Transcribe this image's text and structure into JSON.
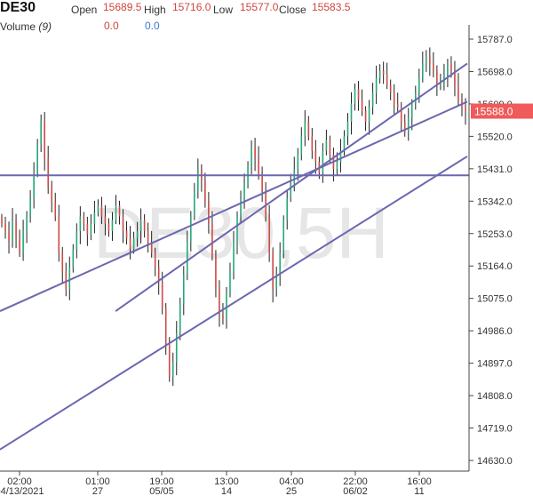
{
  "header": {
    "symbol": "DE30",
    "open_label": "Open",
    "open_value": "15689.5",
    "high_label": "High",
    "high_value": "15716.0",
    "low_label": "Low",
    "low_value": "15577.0",
    "close_label": "Close",
    "close_value": "15583.5",
    "volume_label": "Volume",
    "volume_param": "(9)",
    "volume_value_1": "0.0",
    "volume_value_2": "0.0"
  },
  "watermark": "DE30,5H",
  "colors": {
    "up": "#26a87a",
    "down": "#d04a44",
    "wick": "#222222",
    "trendline": "#6b68b0",
    "price_badge": "#f05a5a"
  },
  "chart_data": {
    "type": "candlestick",
    "y_ticks": [
      "15787.0",
      "15698.0",
      "15609.0",
      "15520.0",
      "15431.0",
      "15342.0",
      "15253.0",
      "15164.0",
      "15075.0",
      "14986.0",
      "14897.0",
      "14808.0",
      "14719.0",
      "14630.0"
    ],
    "ylim": [
      14630,
      15787
    ],
    "x_ticks": [
      {
        "time": "02:00",
        "date": "04/13/2021"
      },
      {
        "time": "01:00",
        "date": "27"
      },
      {
        "time": "19:00",
        "date": "05/05"
      },
      {
        "time": "13:00",
        "date": "14"
      },
      {
        "time": "04:00",
        "date": "25"
      },
      {
        "time": "22:00",
        "date": "06/02"
      },
      {
        "time": "16:00",
        "date": "11"
      }
    ],
    "last_price": "15588.0",
    "horizontal_line": 15413,
    "channel_lines": [
      {
        "start": [
          0,
          15040
        ],
        "end": [
          186,
          15615
        ]
      },
      {
        "start": [
          46,
          15040
        ],
        "end": [
          186,
          15720
        ]
      },
      {
        "start": [
          0,
          14660
        ],
        "end": [
          186,
          15465
        ]
      }
    ],
    "closes": [
      15280,
      15260,
      15230,
      15290,
      15240,
      15200,
      15260,
      15300,
      15350,
      15420,
      15500,
      15560,
      15460,
      15380,
      15340,
      15300,
      15200,
      15150,
      15100,
      15160,
      15210,
      15260,
      15300,
      15280,
      15250,
      15280,
      15310,
      15330,
      15300,
      15280,
      15260,
      15290,
      15330,
      15300,
      15260,
      15240,
      15210,
      15240,
      15260,
      15290,
      15260,
      15230,
      15200,
      15160,
      15120,
      15050,
      14950,
      14860,
      14900,
      14980,
      15060,
      15140,
      15230,
      15300,
      15370,
      15430,
      15400,
      15340,
      15280,
      15190,
      15100,
      15030,
      15020,
      15090,
      15150,
      15230,
      15300,
      15350,
      15390,
      15440,
      15490,
      15460,
      15420,
      15370,
      15300,
      15200,
      15100,
      15140,
      15200,
      15290,
      15350,
      15390,
      15430,
      15470,
      15520,
      15560,
      15520,
      15480,
      15450,
      15420,
      15480,
      15510,
      15470,
      15430,
      15450,
      15480,
      15520,
      15560,
      15610,
      15650,
      15620,
      15590,
      15560,
      15600,
      15640,
      15680,
      15700,
      15690,
      15660,
      15640,
      15610,
      15600,
      15560,
      15530,
      15570,
      15610,
      15640,
      15680,
      15720,
      15740,
      15720,
      15700,
      15660,
      15670,
      15690,
      15720,
      15700,
      15660,
      15620,
      15600,
      15588
    ]
  }
}
